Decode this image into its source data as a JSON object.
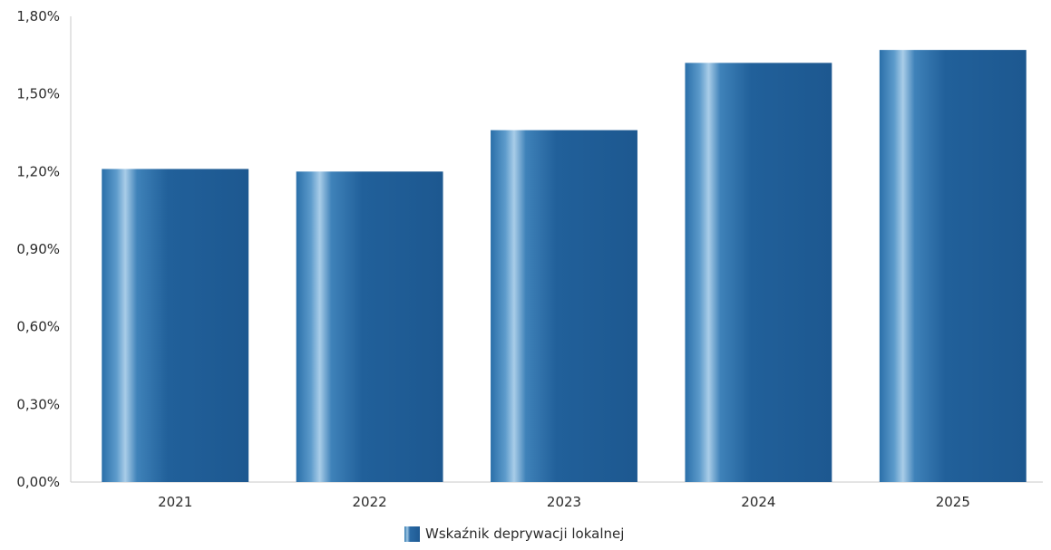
{
  "chart_data": {
    "type": "bar",
    "categories": [
      "2021",
      "2022",
      "2023",
      "2024",
      "2025"
    ],
    "series": [
      {
        "name": "Wskaźnik deprywacji lokalnej",
        "values": [
          1.21,
          1.2,
          1.36,
          1.62,
          1.67
        ]
      }
    ],
    "yticks": [
      "0,00%",
      "0,30%",
      "0,60%",
      "0,90%",
      "1,20%",
      "1,50%",
      "1,80%"
    ],
    "ylim": [
      0,
      1.8
    ],
    "legend_position": "bottom",
    "grid": false,
    "bar_color": "#1f5a93"
  }
}
